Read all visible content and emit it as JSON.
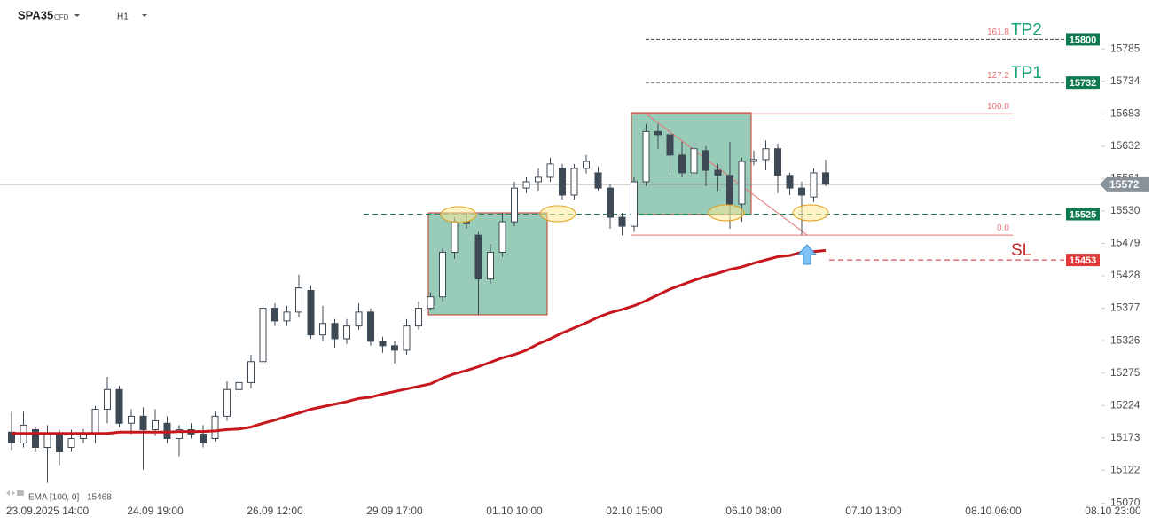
{
  "header": {
    "symbol": "SPA35",
    "instrument": "CFD",
    "interval": "H1"
  },
  "chart_data": {
    "type": "candlestick",
    "categories": [
      null,
      null,
      null,
      null,
      "23.09.2025 14:00",
      null,
      null,
      null,
      null,
      null,
      null,
      null,
      null,
      "24.09 19:00",
      null,
      null,
      null,
      null,
      null,
      null,
      null,
      null,
      null,
      "26.09 12:00",
      null,
      null,
      null,
      null,
      null,
      null,
      null,
      null,
      null,
      "29.09 17:00",
      null,
      null,
      null,
      null,
      null,
      null,
      null,
      null,
      null,
      "01.10 10:00",
      null,
      null,
      null,
      null,
      null,
      null,
      null,
      null,
      null,
      "02.10 15:00",
      null,
      null,
      null,
      null,
      null,
      null,
      null,
      null,
      null,
      "06.10 08:00",
      null,
      null,
      null,
      null,
      null,
      null,
      null,
      null,
      null,
      "07.10 13:00",
      null,
      null,
      null,
      null,
      null,
      null,
      null,
      null,
      null,
      "08.10 06:00",
      null,
      null,
      null,
      null,
      null,
      null,
      null,
      null,
      null,
      "08.10 23:00"
    ],
    "open": [
      null,
      15182,
      15165,
      15186,
      15158,
      15179,
      15158,
      15172,
      15179,
      15218,
      15249,
      15196,
      15207,
      15186,
      15196,
      15172,
      15186,
      15179,
      15172,
      15207,
      15249,
      15260,
      15293,
      15377,
      15357,
      15371,
      15405,
      15335,
      15353,
      15329,
      15349,
      15371,
      15325,
      15318,
      15311,
      15349,
      15377,
      15395,
      15465,
      15513,
      15492,
      15423,
      15465,
      15513,
      15566,
      15576,
      15583,
      15597,
      15555,
      15597,
      15590,
      15566,
      15520,
      15506,
      15576,
      15655,
      15650,
      15618,
      15590,
      15625,
      15594,
      15586,
      15541,
      15608,
      15611,
      15628,
      15586,
      15566,
      15552,
      15590,
      null,
      null,
      null,
      null,
      null,
      null,
      null,
      null,
      null,
      null,
      null,
      null,
      null,
      null,
      null,
      null,
      null,
      null,
      null,
      null,
      null,
      null,
      null,
      null
    ],
    "high": [
      null,
      15214,
      15214,
      15190,
      15193,
      15186,
      15186,
      15187,
      15223,
      15269,
      15255,
      15218,
      15221,
      15218,
      15207,
      15193,
      15196,
      15193,
      15214,
      15262,
      15269,
      15304,
      15388,
      15385,
      15381,
      15430,
      15413,
      15381,
      15360,
      15360,
      15385,
      15377,
      15332,
      15325,
      15360,
      15388,
      15402,
      15471,
      15520,
      15527,
      15497,
      15478,
      15527,
      15576,
      15583,
      15597,
      15614,
      15604,
      15604,
      15618,
      15600,
      15572,
      15527,
      15583,
      15667,
      15667,
      15660,
      15639,
      15639,
      15632,
      15604,
      15639,
      15614,
      15625,
      15641,
      15636,
      15590,
      15576,
      15597,
      15611,
      null,
      null,
      null,
      null,
      null,
      null,
      null,
      null,
      null,
      null,
      null,
      null,
      null,
      null,
      null,
      null,
      null,
      null,
      null,
      null,
      null,
      null,
      null,
      null
    ],
    "low": [
      null,
      15154,
      15158,
      15151,
      15102,
      15130,
      15151,
      15165,
      15165,
      15196,
      15190,
      15179,
      15123,
      15176,
      15165,
      15144,
      15172,
      15158,
      15168,
      15200,
      15242,
      15251,
      15288,
      15349,
      15349,
      15363,
      15329,
      15325,
      15315,
      15321,
      15343,
      15318,
      15307,
      15290,
      15304,
      15343,
      15374,
      15388,
      15455,
      15502,
      15367,
      15416,
      15458,
      15506,
      15558,
      15562,
      15576,
      15548,
      15548,
      15589,
      15562,
      15502,
      15492,
      15497,
      15569,
      15628,
      15590,
      15583,
      15586,
      15569,
      15562,
      15502,
      15513,
      15602,
      15594,
      15558,
      15555,
      15492,
      15544,
      15569,
      null,
      null,
      null,
      null,
      null,
      null,
      null,
      null,
      null,
      null,
      null,
      null,
      null,
      null,
      null,
      null,
      null,
      null,
      null,
      null,
      null,
      null,
      null,
      null
    ],
    "close": [
      null,
      15165,
      15193,
      15158,
      15179,
      15151,
      15172,
      15179,
      15218,
      15249,
      15196,
      15207,
      15186,
      15200,
      15172,
      15186,
      15179,
      15165,
      15207,
      15249,
      15260,
      15293,
      15377,
      15357,
      15371,
      15409,
      15335,
      15353,
      15329,
      15349,
      15371,
      15325,
      15318,
      15311,
      15349,
      15377,
      15395,
      15465,
      15513,
      15510,
      15423,
      15465,
      15513,
      15566,
      15576,
      15583,
      15604,
      15555,
      15597,
      15608,
      15566,
      15520,
      15506,
      15576,
      15655,
      15650,
      15618,
      15590,
      15628,
      15594,
      15586,
      15541,
      15608,
      15611,
      15628,
      15586,
      15566,
      15555,
      15590,
      15572,
      null,
      null,
      null,
      null,
      null,
      null,
      null,
      null,
      null,
      null,
      null,
      null,
      null,
      null,
      null,
      null,
      null,
      null,
      null,
      null,
      null,
      null,
      null,
      null
    ],
    "up_color": "#ffffff",
    "down_color": "#3d4a56",
    "edge_color": "#3d4a56",
    "ema": {
      "name": "EMA [100, 0]",
      "color": "#c8171c",
      "values": [
        null,
        15180,
        15180,
        15180,
        15180,
        15180,
        15180,
        15180,
        15180,
        15180,
        15182,
        15182,
        15182,
        15182,
        15182,
        15183,
        15183,
        15183,
        15184,
        15186,
        15187,
        15190,
        15196,
        15201,
        15207,
        15212,
        15218,
        15222,
        15226,
        15230,
        15235,
        15237,
        15242,
        15246,
        15250,
        15254,
        15258,
        15267,
        15274,
        15279,
        15285,
        15292,
        15299,
        15304,
        15311,
        15321,
        15329,
        15338,
        15346,
        15354,
        15363,
        15370,
        15375,
        15381,
        15389,
        15398,
        15407,
        15414,
        15421,
        15427,
        15432,
        15438,
        15442,
        15448,
        15453,
        15458,
        15460,
        15465,
        15466,
        15468,
        null,
        null,
        null,
        null,
        null,
        null,
        null,
        null,
        null,
        null,
        null,
        null,
        null,
        null,
        null,
        null,
        null,
        null,
        null,
        null,
        null,
        null,
        null,
        null
      ]
    },
    "ylim": [
      15068,
      15862
    ],
    "yticks": [
      15070,
      15122,
      15173,
      15224,
      15275,
      15326,
      15377,
      15428,
      15479,
      15530,
      15581,
      15632,
      15683,
      15734,
      15785
    ],
    "last_price": 15572,
    "entry_level": 15525,
    "targets": [
      {
        "name": "TP2",
        "value": 15800,
        "color": "#1aa36f"
      },
      {
        "name": "TP1",
        "value": 15732,
        "color": "#1aa36f"
      },
      {
        "name": "SL",
        "value": 15453,
        "color": "#c62828"
      }
    ],
    "fib_levels": [
      {
        "label": "161.8",
        "value": 15800
      },
      {
        "label": "127.2",
        "value": 15732
      },
      {
        "label": "100.0",
        "value": 15683
      },
      {
        "label": "0.0",
        "value": 15492
      }
    ]
  }
}
